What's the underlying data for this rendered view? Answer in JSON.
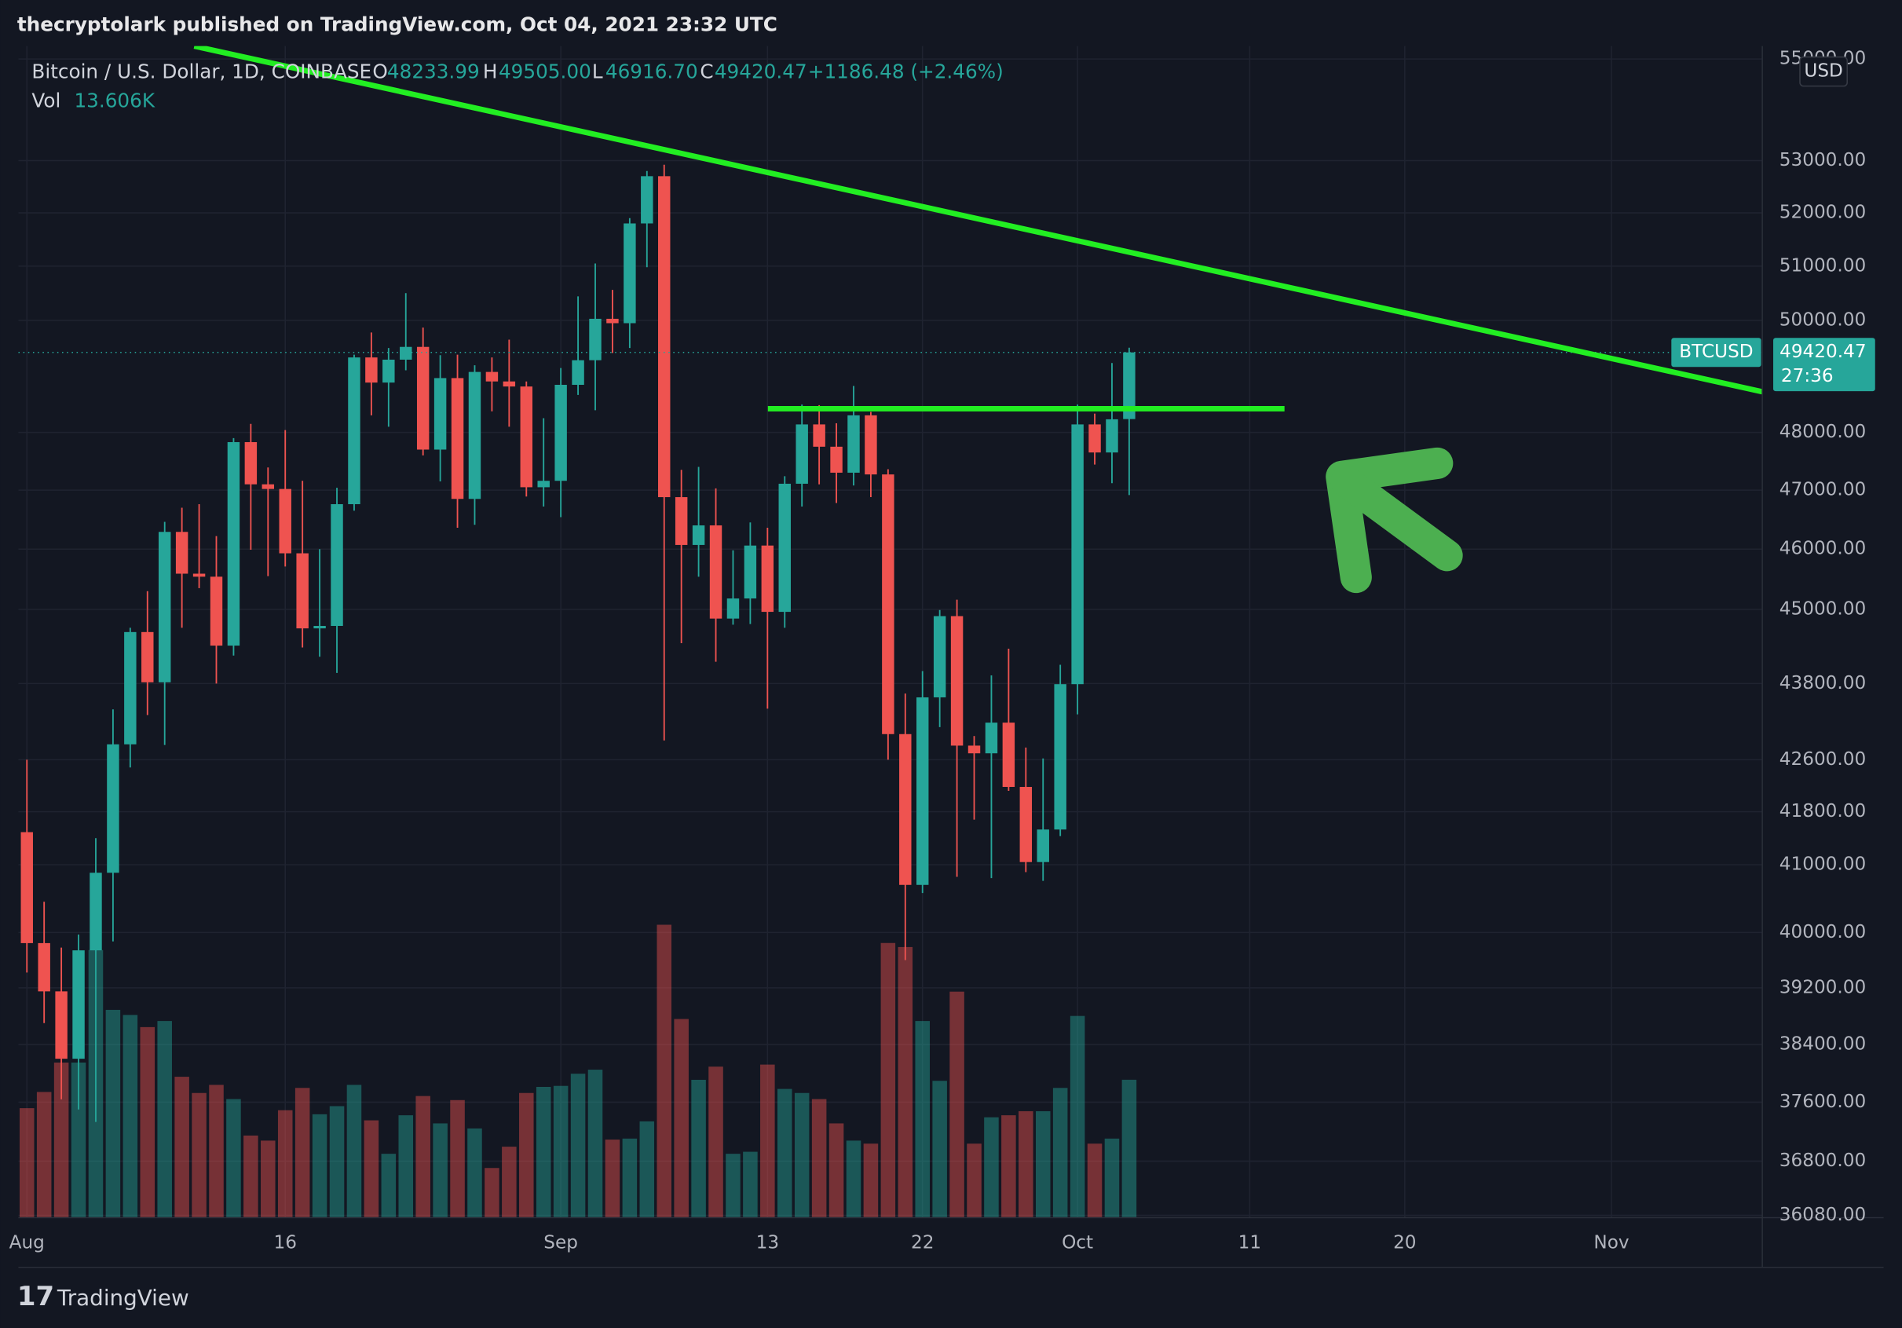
{
  "chart_data": {
    "type": "candlestick",
    "publisher": "thecryptolark published on TradingView.com, Oct 04, 2021 23:32 UTC",
    "symbol": "Bitcoin / U.S. Dollar, 1D, COINBASE",
    "legend": {
      "o_label": "O",
      "open": "48233.99",
      "h_label": "H",
      "high": "49505.00",
      "l_label": "L",
      "low": "46916.70",
      "c_label": "C",
      "close": "49420.47",
      "change": "+1186.48 (+2.46%)"
    },
    "currency": "USD",
    "price_tag": {
      "symbol": "BTCUSD",
      "price": "49420.47",
      "countdown": "27:36"
    },
    "brand": "TradingView",
    "up_color": "#26a69a",
    "down_color": "#ef5350",
    "log_scale": true,
    "grid": true,
    "x": [
      "2021-08-01",
      "2021-08-02",
      "2021-08-03",
      "2021-08-04",
      "2021-08-05",
      "2021-08-06",
      "2021-08-07",
      "2021-08-08",
      "2021-08-09",
      "2021-08-10",
      "2021-08-11",
      "2021-08-12",
      "2021-08-13",
      "2021-08-14",
      "2021-08-15",
      "2021-08-16",
      "2021-08-17",
      "2021-08-18",
      "2021-08-19",
      "2021-08-20",
      "2021-08-21",
      "2021-08-22",
      "2021-08-23",
      "2021-08-24",
      "2021-08-25",
      "2021-08-26",
      "2021-08-27",
      "2021-08-28",
      "2021-08-29",
      "2021-08-30",
      "2021-08-31",
      "2021-09-01",
      "2021-09-02",
      "2021-09-03",
      "2021-09-04",
      "2021-09-05",
      "2021-09-06",
      "2021-09-07",
      "2021-09-08",
      "2021-09-09",
      "2021-09-10",
      "2021-09-11",
      "2021-09-12",
      "2021-09-13",
      "2021-09-14",
      "2021-09-15",
      "2021-09-16",
      "2021-09-17",
      "2021-09-18",
      "2021-09-19",
      "2021-09-20",
      "2021-09-21",
      "2021-09-22",
      "2021-09-23",
      "2021-09-24",
      "2021-09-25",
      "2021-09-26",
      "2021-09-27",
      "2021-09-28",
      "2021-09-29",
      "2021-09-30",
      "2021-10-01",
      "2021-10-02",
      "2021-10-03",
      "2021-10-04"
    ],
    "open": [
      41490,
      39845,
      39150,
      38200,
      39740,
      40880,
      42840,
      44630,
      43820,
      46290,
      45590,
      45540,
      44410,
      47830,
      47100,
      47020,
      45930,
      44690,
      44730,
      46760,
      49330,
      48880,
      49290,
      49520,
      47700,
      48960,
      46850,
      49070,
      48900,
      48810,
      47050,
      47160,
      48840,
      49280,
      50030,
      49950,
      51800,
      52700,
      46880,
      46070,
      46400,
      44850,
      45180,
      46060,
      44960,
      47110,
      48140,
      47750,
      47300,
      48300,
      47270,
      43000,
      40700,
      43580,
      44890,
      42820,
      42700,
      43180,
      42180,
      41040,
      41530,
      43790,
      48140,
      47650,
      48233.99
    ],
    "high": [
      42600,
      40450,
      39780,
      39970,
      41400,
      43390,
      44700,
      45300,
      46460,
      46700,
      46760,
      46220,
      47900,
      48150,
      47390,
      48040,
      47160,
      46000,
      47040,
      49380,
      49780,
      49500,
      50500,
      49870,
      49370,
      49380,
      49190,
      49330,
      49650,
      48900,
      48250,
      49140,
      50440,
      51050,
      50560,
      51900,
      52800,
      52920,
      47350,
      47400,
      47030,
      45980,
      46450,
      46360,
      47240,
      48490,
      48480,
      48160,
      48820,
      48360,
      47360,
      43640,
      44000,
      44990,
      45160,
      42970,
      43930,
      44360,
      42790,
      42620,
      44100,
      48490,
      48330,
      49230,
      49505
    ],
    "low": [
      39420,
      38700,
      37640,
      37500,
      37330,
      39870,
      42480,
      43300,
      42830,
      44700,
      45350,
      43800,
      44250,
      45990,
      45550,
      45710,
      44380,
      44230,
      43970,
      46650,
      48300,
      48100,
      49100,
      47600,
      47150,
      46360,
      46410,
      48370,
      48100,
      46890,
      46720,
      46540,
      48660,
      48390,
      49410,
      49500,
      50980,
      42900,
      44450,
      45540,
      44150,
      44750,
      44760,
      43400,
      44700,
      46720,
      47100,
      46780,
      47080,
      46880,
      42600,
      39600,
      40580,
      43110,
      40820,
      41680,
      40800,
      42120,
      40890,
      40760,
      41430,
      43310,
      47440,
      47120,
      46916.7
    ],
    "close": [
      39845,
      39150,
      38200,
      39740,
      40880,
      42840,
      44630,
      43820,
      46290,
      45590,
      45540,
      44410,
      47830,
      47100,
      47020,
      45930,
      44690,
      44730,
      46760,
      49330,
      48880,
      49290,
      49520,
      47700,
      48960,
      46850,
      49070,
      48900,
      48810,
      47050,
      47160,
      48840,
      49280,
      50030,
      49950,
      51800,
      52700,
      46880,
      46070,
      46400,
      44850,
      45180,
      46060,
      44960,
      47110,
      48140,
      47750,
      47300,
      48300,
      47270,
      43000,
      40700,
      43580,
      44890,
      42820,
      42700,
      43180,
      42180,
      41040,
      41530,
      43790,
      48140,
      47650,
      48230,
      49420.47
    ],
    "volume": {
      "name": "Vol",
      "label": "13.606K",
      "values": [
        10800,
        12400,
        15300,
        15300,
        26400,
        20500,
        20000,
        18800,
        19400,
        13900,
        12300,
        13100,
        11700,
        8100,
        7600,
        10600,
        12800,
        10200,
        11000,
        13100,
        9600,
        6300,
        10100,
        12000,
        9300,
        11600,
        8800,
        4900,
        7000,
        12300,
        12900,
        13000,
        14200,
        14600,
        7700,
        7800,
        9500,
        28900,
        19600,
        13600,
        14900,
        6300,
        6500,
        15100,
        12700,
        12300,
        11700,
        9300,
        7600,
        7300,
        27100,
        26700,
        19400,
        13500,
        22300,
        7300,
        9900,
        10100,
        10500,
        10500,
        12800,
        19900,
        7300,
        7800,
        13606
      ]
    },
    "xlim": [
      "2021-08-01",
      "2021-11-08"
    ],
    "xticks": [
      {
        "value": "2021-08-01",
        "label": "Aug"
      },
      {
        "value": "2021-08-16",
        "label": "16"
      },
      {
        "value": "2021-09-01",
        "label": "Sep"
      },
      {
        "value": "2021-09-13",
        "label": "13"
      },
      {
        "value": "2021-09-22",
        "label": "22"
      },
      {
        "value": "2021-10-01",
        "label": "Oct"
      },
      {
        "value": "2021-10-11",
        "label": "11"
      },
      {
        "value": "2021-10-20",
        "label": "20"
      },
      {
        "value": "2021-11-01",
        "label": "Nov"
      }
    ],
    "ylim": [
      36050,
      55260
    ],
    "yticks": [
      {
        "value": 55000,
        "label": "55000.00"
      },
      {
        "value": 53000,
        "label": "53000.00"
      },
      {
        "value": 52000,
        "label": "52000.00"
      },
      {
        "value": 51000,
        "label": "51000.00"
      },
      {
        "value": 50000,
        "label": "50000.00"
      },
      {
        "value": 48000,
        "label": "48000.00"
      },
      {
        "value": 47000,
        "label": "47000.00"
      },
      {
        "value": 46000,
        "label": "46000.00"
      },
      {
        "value": 45000,
        "label": "45000.00"
      },
      {
        "value": 43800,
        "label": "43800.00"
      },
      {
        "value": 42600,
        "label": "42600.00"
      },
      {
        "value": 41800,
        "label": "41800.00"
      },
      {
        "value": 41000,
        "label": "41000.00"
      },
      {
        "value": 40000,
        "label": "40000.00"
      },
      {
        "value": 39200,
        "label": "39200.00"
      },
      {
        "value": 38400,
        "label": "38400.00"
      },
      {
        "value": 37600,
        "label": "37600.00"
      },
      {
        "value": 36800,
        "label": "36800.00"
      },
      {
        "value": 36080,
        "label": "36080.00"
      }
    ]
  }
}
